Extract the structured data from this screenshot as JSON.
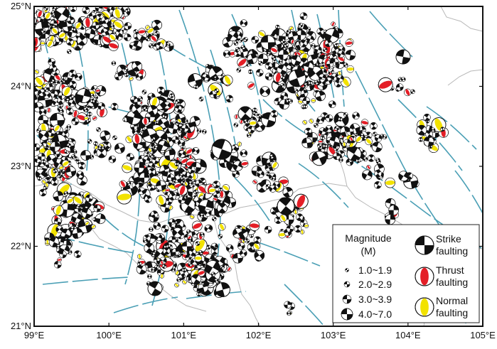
{
  "map": {
    "x_axis_ticks": [
      "99°E",
      "100°E",
      "101°E",
      "102°E",
      "103°E",
      "104°E",
      "105°E"
    ],
    "y_axis_ticks": [
      "25°N",
      "24°N",
      "23°N",
      "22°N",
      "21°N"
    ],
    "lon_range": [
      99,
      105
    ],
    "lat_range": [
      21,
      25
    ],
    "fault_color": "#4a9fb5",
    "border_color": "#b8b8b8",
    "thrust_color": "#e41e26",
    "normal_color": "#f2e200",
    "strike_color": "#111111"
  },
  "legend": {
    "magnitude_title": "Magnitude",
    "magnitude_unit": "(M)",
    "magnitude_bins": [
      "1.0~1.9",
      "2.0~2.9",
      "3.0~3.9",
      "4.0~7.0"
    ],
    "mechanisms": [
      {
        "line1": "Strike",
        "line2": "faulting",
        "icon": "strike-slip-beachball-icon"
      },
      {
        "line1": "Thrust",
        "line2": "faulting",
        "icon": "thrust-beachball-icon"
      },
      {
        "line1": "Normal",
        "line2": "faulting",
        "icon": "normal-beachball-icon"
      }
    ]
  }
}
